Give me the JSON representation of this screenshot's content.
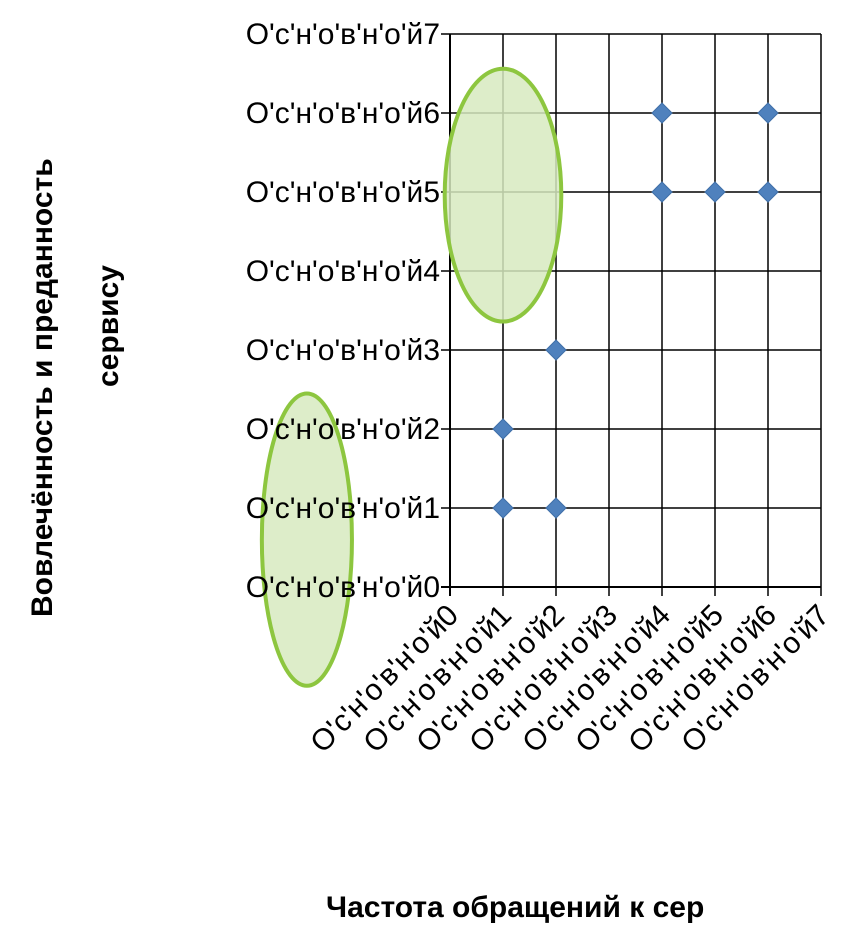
{
  "chart_data": {
    "type": "scatter",
    "title": "",
    "xlabel": "Частота обращений к сер",
    "ylabel_line1": "Вовлечённость и преданность",
    "ylabel_line2": "сервису",
    "x_tick_labels": [
      "О'с'н'о'в'н'о'й0",
      "О'с'н'о'в'н'о'й1",
      "О'с'н'о'в'н'о'й2",
      "О'с'н'о'в'н'о'й3",
      "О'с'н'о'в'н'о'й4",
      "О'с'н'о'в'н'о'й5",
      "О'с'н'о'в'н'о'й6",
      "О'с'н'о'в'н'о'й7"
    ],
    "y_tick_labels": [
      "О'с'н'о'в'н'о'й0",
      "О'с'н'о'в'н'о'й1",
      "О'с'н'о'в'н'о'й2",
      "О'с'н'о'в'н'о'й3",
      "О'с'н'о'в'н'о'й4",
      "О'с'н'о'в'н'о'й5",
      "О'с'н'о'в'н'о'й6",
      "О'с'н'о'в'н'о'й7"
    ],
    "xlim": [
      0,
      7
    ],
    "ylim": [
      0,
      7
    ],
    "grid": true,
    "points": [
      {
        "x": 1,
        "y": 1
      },
      {
        "x": 2,
        "y": 1
      },
      {
        "x": 1,
        "y": 2
      },
      {
        "x": 2,
        "y": 3
      },
      {
        "x": 4,
        "y": 5
      },
      {
        "x": 5,
        "y": 5
      },
      {
        "x": 6,
        "y": 5
      },
      {
        "x": 4,
        "y": 6
      },
      {
        "x": 6,
        "y": 6
      }
    ],
    "highlight_regions": [
      {
        "cx": 1.0,
        "cy": 4.96,
        "rx": 1.1,
        "ry": 1.6
      },
      {
        "cx": -2.7,
        "cy": 0.6,
        "rx": 0.85,
        "ry": 1.85
      }
    ],
    "colors": {
      "marker": "#4F81BD",
      "marker_stroke": "#3F6FA8",
      "grid": "#000000",
      "region_fill": "#D7EAC0",
      "region_stroke": "#8DC63F",
      "text": "#000000"
    }
  }
}
